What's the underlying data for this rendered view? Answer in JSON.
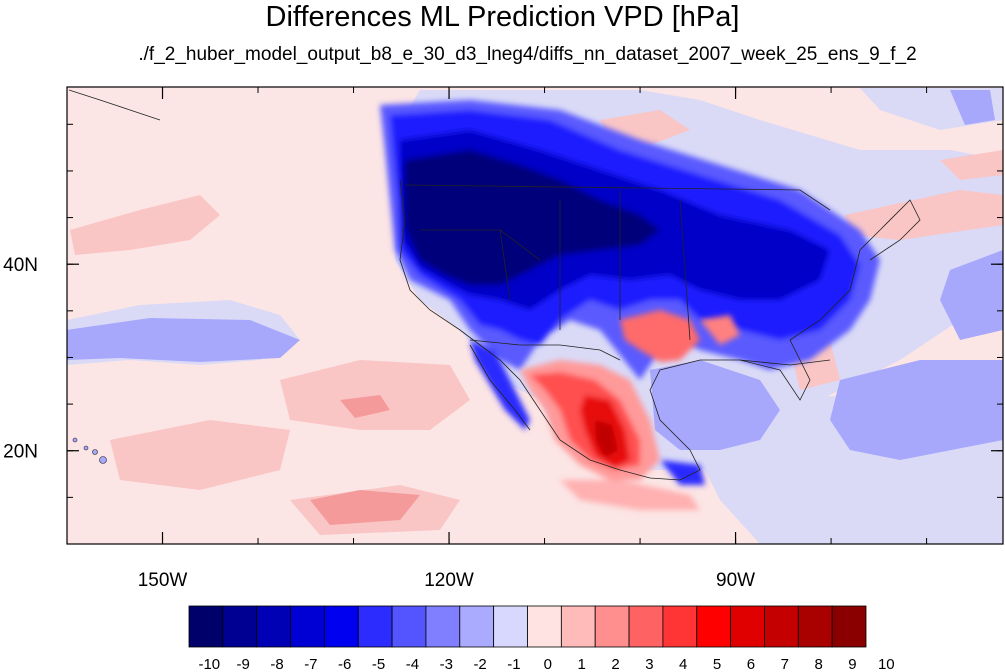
{
  "header": {
    "title": "Differences ML Prediction VPD [hPa]",
    "subtitle": "./f_2_huber_model_output_b8_e_30_d3_lneg4/diffs_nn_dataset_2007_week_25_ens_9_f_2"
  },
  "map": {
    "lon_range": [
      -160,
      -62
    ],
    "lat_range": [
      10,
      59
    ],
    "x_ticks": [
      {
        "lon": -150,
        "label": "150W"
      },
      {
        "lon": -120,
        "label": "120W"
      },
      {
        "lon": -90,
        "label": "90W"
      }
    ],
    "y_ticks": [
      {
        "lat": 40,
        "label": "40N"
      },
      {
        "lat": 20,
        "label": "20N"
      }
    ]
  },
  "colorbar": {
    "labels": [
      "-10",
      "-9",
      "-8",
      "-7",
      "-6",
      "-5",
      "-4",
      "-3",
      "-2",
      "-1",
      "0",
      "1",
      "2",
      "3",
      "4",
      "5",
      "6",
      "7",
      "8",
      "9",
      "10"
    ],
    "colors": [
      "#00006a",
      "#000092",
      "#0000b5",
      "#0000d4",
      "#0000f0",
      "#2c2cff",
      "#5555ff",
      "#7f7fff",
      "#aaaaff",
      "#d8d8ff",
      "#ffe3e3",
      "#ffbaba",
      "#ff8e8e",
      "#ff6262",
      "#ff3434",
      "#ff0000",
      "#e00000",
      "#c40000",
      "#a90000",
      "#8a0000"
    ]
  },
  "colors": {
    "ocean_light_pink": "#fce5e5",
    "light_blue": "#dadaf7",
    "deep_blue": "#00007a",
    "red": "#e81010"
  }
}
